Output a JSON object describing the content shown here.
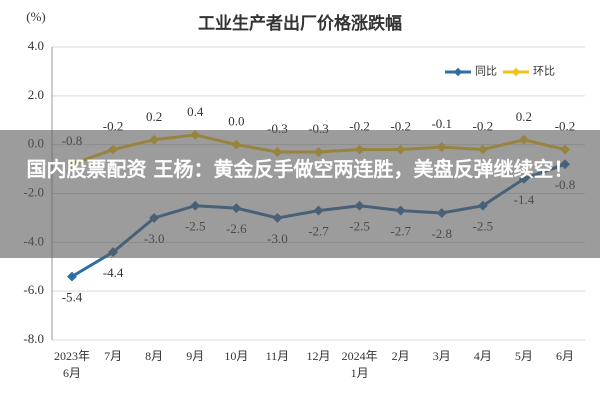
{
  "chart_data": {
    "type": "line",
    "title": "工业生产者出厂价格涨跌幅",
    "y_unit": "(%)",
    "categories": [
      "2023年\n6月",
      "7月",
      "8月",
      "9月",
      "10月",
      "11月",
      "12月",
      "2024年\n1月",
      "2月",
      "3月",
      "4月",
      "5月",
      "6月"
    ],
    "series": [
      {
        "name": "同比",
        "color": "#2e6ca4",
        "values": [
          -5.4,
          -4.4,
          -3.0,
          -2.5,
          -2.6,
          -3.0,
          -2.7,
          -2.5,
          -2.7,
          -2.8,
          -2.5,
          -1.4,
          -0.8
        ],
        "value_labels": [
          "-5.4",
          "-4.4",
          "-3.0",
          "-2.5",
          "-2.6",
          "-3.0",
          "-2.7",
          "-2.5",
          "-2.7",
          "-2.8",
          "-2.5",
          "-1.4",
          "-0.8"
        ]
      },
      {
        "name": "环比",
        "color": "#f2c318",
        "values": [
          -0.8,
          -0.2,
          0.2,
          0.4,
          0.0,
          -0.3,
          -0.3,
          -0.2,
          -0.2,
          -0.1,
          -0.2,
          0.2,
          -0.2
        ],
        "value_labels": [
          "-0.8",
          "-0.2",
          "0.2",
          "0.4",
          "0.0",
          "-0.3",
          "-0.3",
          "-0.2",
          "-0.2",
          "-0.1",
          "-0.2",
          "0.2",
          "-0.2"
        ]
      }
    ],
    "ylim": [
      -8,
      4
    ],
    "yticks": [
      {
        "value": -8,
        "label": "-8.0"
      },
      {
        "value": -6,
        "label": "-6.0"
      },
      {
        "value": -4,
        "label": "-4.0"
      },
      {
        "value": -2,
        "label": "-2.0"
      },
      {
        "value": 0,
        "label": "0.0"
      },
      {
        "value": 2,
        "label": "2.0"
      },
      {
        "value": 4,
        "label": "4.0"
      }
    ],
    "grid": true,
    "legend": "top-right"
  },
  "overlay": {
    "text": "国内股票配资 王杨：黄金反手做空两连胜，美盘反弹继续空！"
  }
}
